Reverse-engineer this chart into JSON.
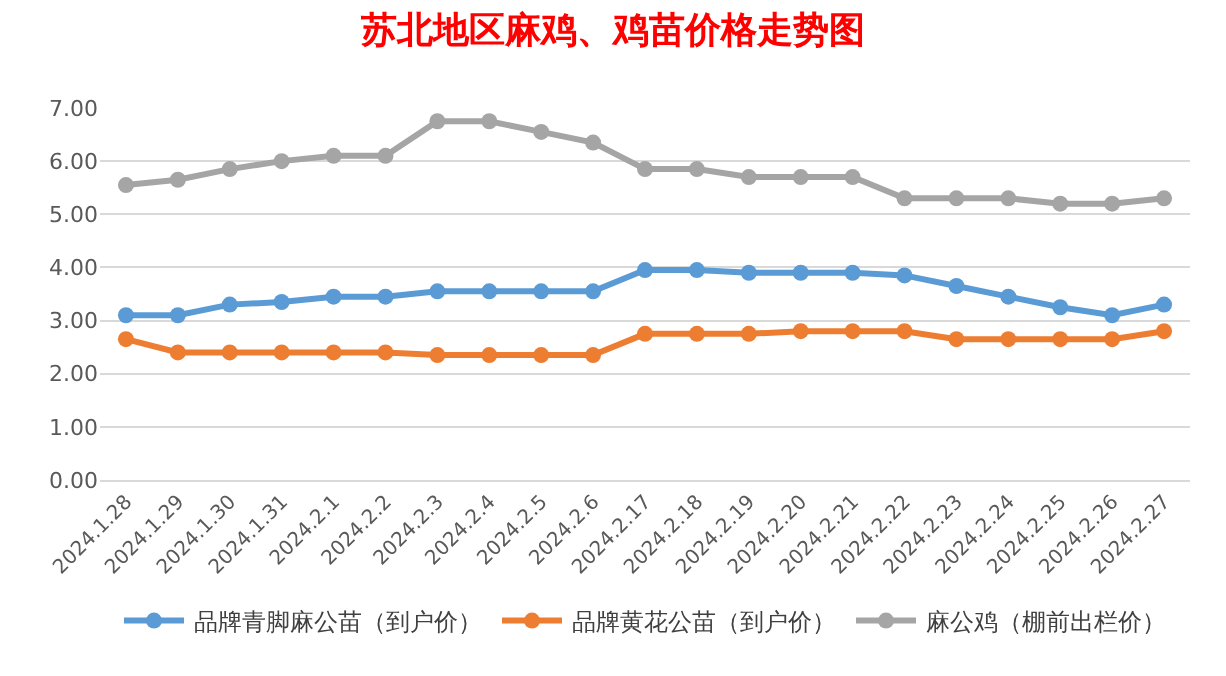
{
  "chart_data": {
    "type": "line",
    "title": "苏北地区麻鸡、鸡苗价格走势图",
    "categories": [
      "2024.1.28",
      "2024.1.29",
      "2024.1.30",
      "2024.1.31",
      "2024.2.1",
      "2024.2.2",
      "2024.2.3",
      "2024.2.4",
      "2024.2.5",
      "2024.2.6",
      "2024.2.17",
      "2024.2.18",
      "2024.2.19",
      "2024.2.20",
      "2024.2.21",
      "2024.2.22",
      "2024.2.23",
      "2024.2.24",
      "2024.2.25",
      "2024.2.26",
      "2024.2.27"
    ],
    "series": [
      {
        "name": "品牌青脚麻公苗（到户价）",
        "color": "#5b9bd5",
        "values": [
          3.1,
          3.1,
          3.3,
          3.35,
          3.45,
          3.45,
          3.55,
          3.55,
          3.55,
          3.55,
          3.95,
          3.95,
          3.9,
          3.9,
          3.9,
          3.85,
          3.65,
          3.45,
          3.25,
          3.1,
          3.3
        ]
      },
      {
        "name": "品牌黄花公苗（到户价）",
        "color": "#ed7d31",
        "values": [
          2.65,
          2.4,
          2.4,
          2.4,
          2.4,
          2.4,
          2.35,
          2.35,
          2.35,
          2.35,
          2.75,
          2.75,
          2.75,
          2.8,
          2.8,
          2.8,
          2.65,
          2.65,
          2.65,
          2.65,
          2.8
        ]
      },
      {
        "name": "麻公鸡（棚前出栏价）",
        "color": "#a5a5a5",
        "values": [
          5.55,
          5.65,
          5.85,
          6.0,
          6.1,
          6.1,
          6.75,
          6.75,
          6.55,
          6.35,
          5.85,
          5.85,
          5.7,
          5.7,
          5.7,
          5.3,
          5.3,
          5.3,
          5.2,
          5.2,
          5.3
        ]
      }
    ],
    "ylim": [
      0,
      7
    ],
    "yticks": [
      {
        "value": 0,
        "label": "0.00"
      },
      {
        "value": 1,
        "label": "1.00"
      },
      {
        "value": 2,
        "label": "2.00"
      },
      {
        "value": 3,
        "label": "3.00"
      },
      {
        "value": 4,
        "label": "4.00"
      },
      {
        "value": 5,
        "label": "5.00"
      },
      {
        "value": 6,
        "label": "6.00"
      },
      {
        "value": 7,
        "label": "7.00"
      }
    ],
    "grid": "y",
    "legend": "bottom",
    "marker": "circle",
    "line_style": "solid"
  }
}
